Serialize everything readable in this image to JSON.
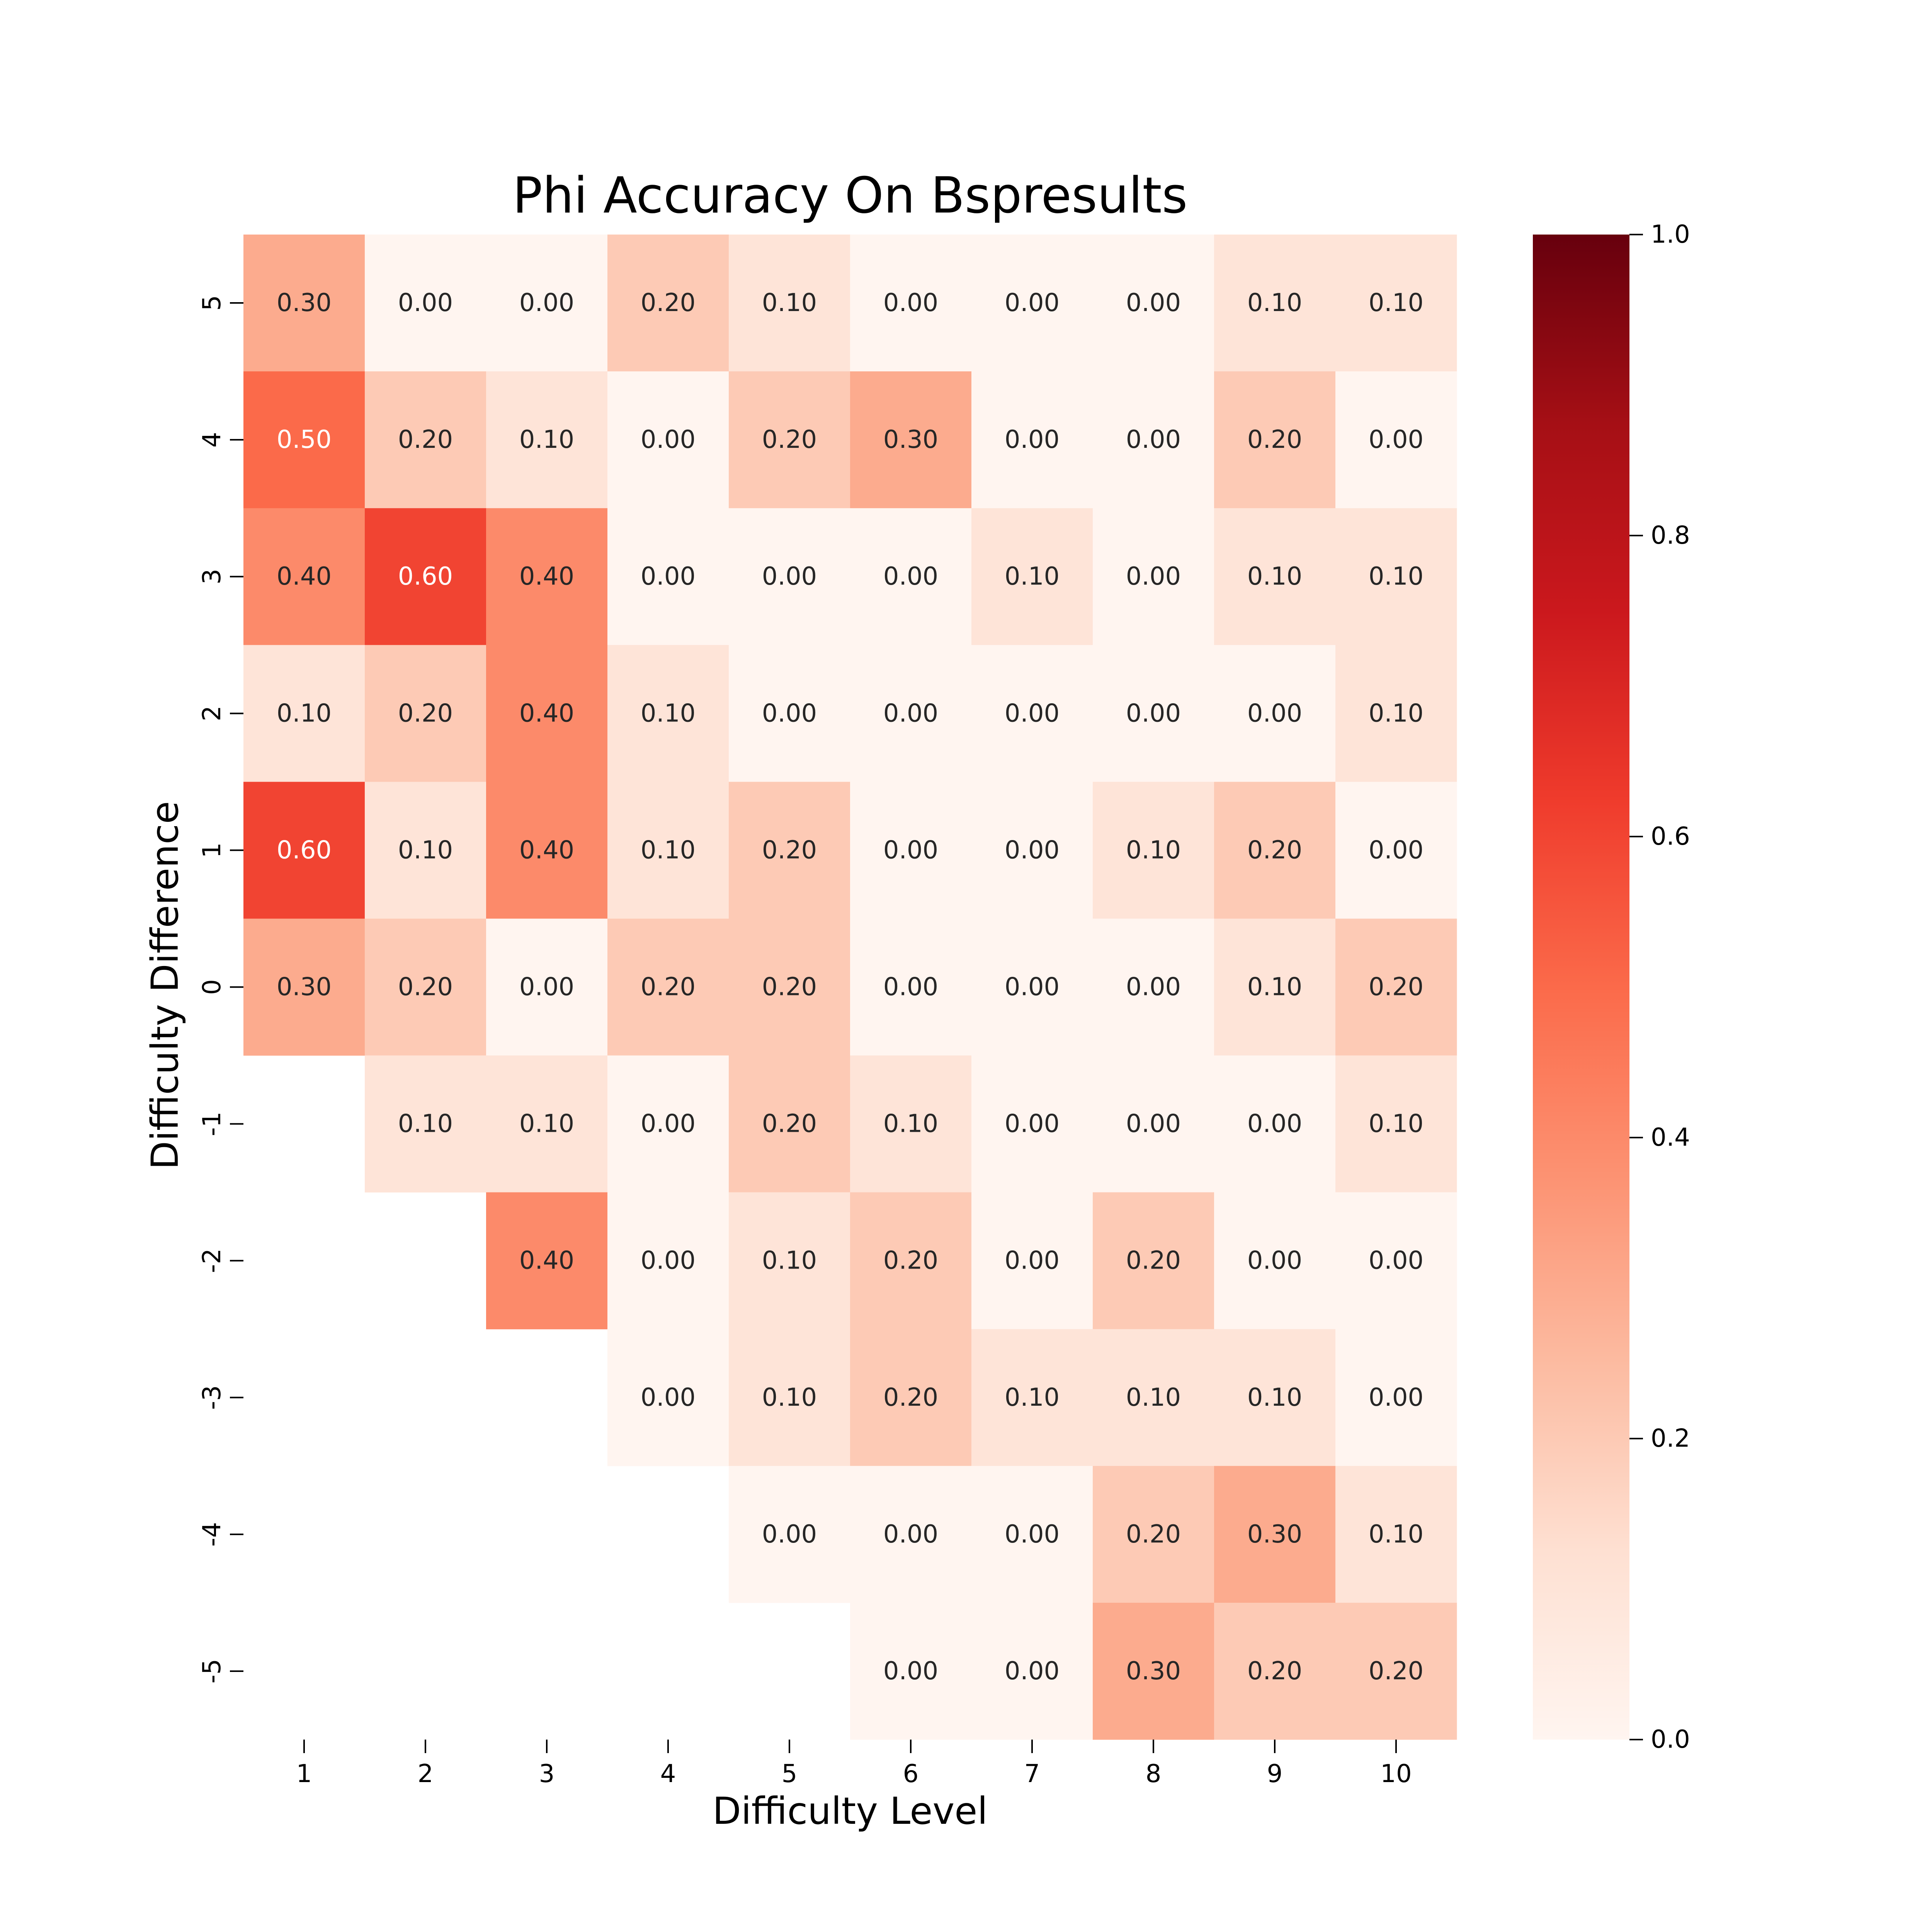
{
  "chart_data": {
    "type": "heatmap",
    "title": "Phi Accuracy On Bspresults",
    "xlabel": "Difficulty Level",
    "ylabel": "Difficulty Difference",
    "x_categories": [
      "1",
      "2",
      "3",
      "4",
      "5",
      "6",
      "7",
      "8",
      "9",
      "10"
    ],
    "y_categories": [
      "5",
      "4",
      "3",
      "2",
      "1",
      "0",
      "-1",
      "-2",
      "-3",
      "-4",
      "-5"
    ],
    "values": [
      [
        0.3,
        0.0,
        0.0,
        0.2,
        0.1,
        0.0,
        0.0,
        0.0,
        0.1,
        0.1
      ],
      [
        0.5,
        0.2,
        0.1,
        0.0,
        0.2,
        0.3,
        0.0,
        0.0,
        0.2,
        0.0
      ],
      [
        0.4,
        0.6,
        0.4,
        0.0,
        0.0,
        0.0,
        0.1,
        0.0,
        0.1,
        0.1
      ],
      [
        0.1,
        0.2,
        0.4,
        0.1,
        0.0,
        0.0,
        0.0,
        0.0,
        0.0,
        0.1
      ],
      [
        0.6,
        0.1,
        0.4,
        0.1,
        0.2,
        0.0,
        0.0,
        0.1,
        0.2,
        0.0
      ],
      [
        0.3,
        0.2,
        0.0,
        0.2,
        0.2,
        0.0,
        0.0,
        0.0,
        0.1,
        0.2
      ],
      [
        null,
        0.1,
        0.1,
        0.0,
        0.2,
        0.1,
        0.0,
        0.0,
        0.0,
        0.1
      ],
      [
        null,
        null,
        0.4,
        0.0,
        0.1,
        0.2,
        0.0,
        0.2,
        0.0,
        0.0
      ],
      [
        null,
        null,
        null,
        0.0,
        0.1,
        0.2,
        0.1,
        0.1,
        0.1,
        0.0
      ],
      [
        null,
        null,
        null,
        null,
        0.0,
        0.0,
        0.0,
        0.2,
        0.3,
        0.1
      ],
      [
        null,
        null,
        null,
        null,
        null,
        0.0,
        0.0,
        0.3,
        0.2,
        0.2
      ]
    ],
    "value_format": "0.00",
    "colormap": "Reds",
    "vmin": 0.0,
    "vmax": 1.0,
    "colorbar_ticks": [
      "0.0",
      "0.2",
      "0.4",
      "0.6",
      "0.8",
      "1.0"
    ],
    "colorbar_tick_values": [
      0.0,
      0.2,
      0.4,
      0.6,
      0.8,
      1.0
    ],
    "grid": false
  }
}
